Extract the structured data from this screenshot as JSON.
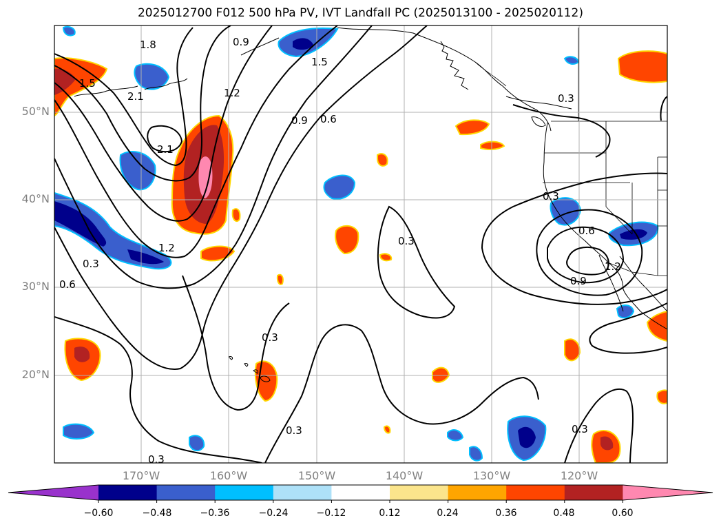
{
  "title": "2025012700 F012 500 hPa PV, IVT Landfall PC (2025013100 - 2025020112)",
  "lat_labels": [
    "50°N",
    "40°N",
    "30°N",
    "20°N"
  ],
  "lon_labels": [
    "170°W",
    "160°W",
    "150°W",
    "140°W",
    "130°W",
    "120°W"
  ],
  "colorbar": {
    "ticks": [
      "−0.60",
      "−0.48",
      "−0.36",
      "−0.24",
      "−0.12",
      "0.12",
      "0.24",
      "0.36",
      "0.48",
      "0.60"
    ],
    "colors": [
      "#9932cc",
      "#00008b",
      "#3a5fcd",
      "#00bfff",
      "#aee1f8",
      "#ffffff",
      "#fbe58c",
      "#ffa500",
      "#ff4500",
      "#b22222",
      "#ff88b0"
    ]
  },
  "contour_labels": [
    "1.8",
    "0.9",
    "1.5",
    "2.1",
    "1.5",
    "1.2",
    "2.1",
    "0.9",
    "0.6",
    "1.2",
    "0.3",
    "0.6",
    "0.3",
    "0.3",
    "0.3",
    "0.3",
    "0.3",
    "0.6",
    "0.9",
    "1.2",
    "0.3",
    "0.3"
  ],
  "map": {
    "projection": "cylindrical",
    "lon_range": [
      "180°W",
      "110°W"
    ],
    "lat_range": [
      "10°N",
      "60°N"
    ],
    "grid": true
  }
}
